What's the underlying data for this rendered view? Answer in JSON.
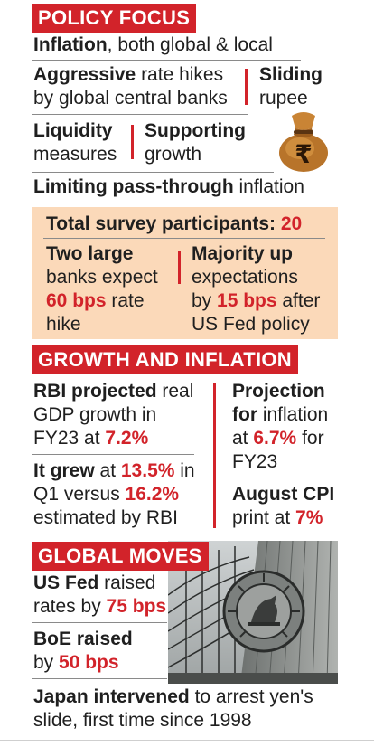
{
  "policy_focus": {
    "tag": "POLICY FOCUS",
    "l1_b": "Inflation",
    "l1_t": ", both global & local",
    "l2_b": "Aggressive",
    "l2_t": " rate hikes",
    "l3": "by global central banks",
    "sliding_b": "Sliding",
    "sliding_t": "rupee",
    "liq_b": "Liquidity",
    "liq_t": "measures",
    "sup_b": "Supporting",
    "sup_t": "growth",
    "lim_b": "Limiting pass-through",
    "lim_t": " inflation"
  },
  "survey": {
    "total_label": "Total survey participants: ",
    "total_value": "20",
    "left_b": "Two large",
    "left_l2": "banks expect",
    "left_r": "60 bps",
    "left_l3": " rate",
    "left_l4": "hike",
    "right_b": "Majority up",
    "right_l2": "expectations",
    "right_l3a": "by ",
    "right_r": "15 bps",
    "right_l3b": " after",
    "right_l4": "US Fed policy"
  },
  "growth": {
    "tag": "GROWTH AND INFLATION",
    "a_b": "RBI projected",
    "a_t": " real",
    "a_l2": "GDP growth in",
    "a_l3": "FY23 at ",
    "a_r": "7.2%",
    "b_b": "It grew",
    "b_t1": " at ",
    "b_r1": "13.5%",
    "b_t2": " in",
    "b_l2": "Q1 versus ",
    "b_r2": "16.2%",
    "b_l3": "estimated by RBI",
    "c_b1": "Projection",
    "c_b2": "for",
    "c_t2": " inflation",
    "c_l3a": "at ",
    "c_r": "6.7%",
    "c_l3b": " for",
    "c_l4": "FY23",
    "d_b": "August CPI",
    "d_l2": "print at ",
    "d_r": "7%"
  },
  "global": {
    "tag": "GLOBAL MOVES",
    "a_b": "US Fed",
    "a_t": " raised",
    "a_l2": "rates by ",
    "a_r": "75 bps",
    "b_b": "BoE raised",
    "b_l2": "by ",
    "b_r": "50 bps",
    "c_b": "Japan intervened",
    "c_t": " to arrest yen's",
    "c_l2": "slide, first time since 1998"
  },
  "icons": [
    "money-bag-rupee-icon",
    "rbi-building-photo",
    "rbi-seal-emblem"
  ],
  "colors": {
    "accent": "#d2232a",
    "panel": "#fbd9b9",
    "text": "#1f1f1f"
  }
}
